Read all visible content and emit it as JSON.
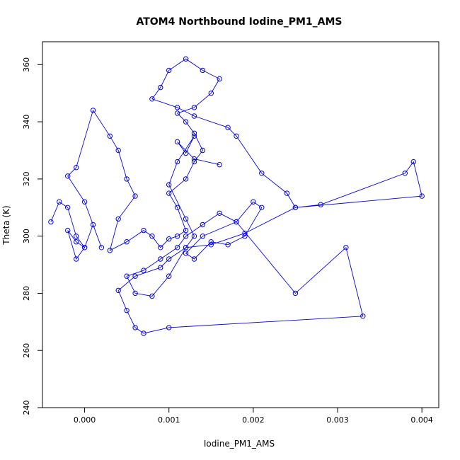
{
  "chart_data": {
    "type": "line",
    "title": "ATOM4 Northbound Iodine_PM1_AMS",
    "xlabel": "Iodine_PM1_AMS",
    "ylabel": "Theta (K)",
    "xlim": [
      -0.0005,
      0.0042
    ],
    "ylim": [
      240,
      368
    ],
    "xticks": [
      0.0,
      0.001,
      0.002,
      0.003,
      0.004
    ],
    "xtick_labels": [
      "0.000",
      "0.001",
      "0.002",
      "0.003",
      "0.004"
    ],
    "yticks": [
      240,
      260,
      280,
      300,
      320,
      340,
      360
    ],
    "ytick_labels": [
      "240",
      "260",
      "280",
      "300",
      "320",
      "340",
      "360"
    ],
    "grid": false,
    "legend": "none",
    "marker": "open-circle",
    "color": "#0000ff",
    "series": [
      {
        "x": [
          -0.0004,
          -0.0003,
          -0.0002,
          -0.0001,
          0.0,
          -0.0001,
          -0.0002,
          -0.0001,
          0.0,
          0.0001,
          0.0002,
          0.0,
          -0.0002,
          -0.0001,
          0.0001,
          0.0003,
          0.0004,
          0.0005,
          0.0006,
          0.0004,
          0.0003,
          0.0005,
          0.0007,
          0.0008,
          0.0009,
          0.001,
          0.0011,
          0.0012,
          0.0011,
          0.001,
          0.0012,
          0.0013,
          0.0014,
          0.0013,
          0.0012,
          0.0011,
          0.0013,
          0.0015,
          0.0016,
          0.0014,
          0.0012,
          0.001,
          0.0009,
          0.0008,
          0.0011,
          0.0013,
          0.0017,
          0.0018,
          0.0021,
          0.0024,
          0.0025,
          0.0028,
          0.0038,
          0.0039,
          0.004,
          0.0025,
          0.0019,
          0.0015,
          0.0012,
          0.001,
          0.0008,
          0.0006,
          0.0005,
          0.0007,
          0.0009,
          0.0011,
          0.0012,
          0.0014,
          0.0016,
          0.0018,
          0.002,
          0.0021,
          0.0019,
          0.0017,
          0.0015,
          0.0013,
          0.0012,
          0.0014,
          0.0018,
          0.0025,
          0.0031,
          0.0033,
          0.001,
          0.0007,
          0.0006,
          0.0005,
          0.0004,
          0.0006,
          0.0009,
          0.001,
          0.0012,
          0.0013,
          0.0012,
          0.001,
          0.0011,
          0.0013,
          0.0012,
          0.0011,
          0.0013,
          0.0016
        ],
        "y": [
          305,
          312,
          310,
          300,
          296,
          298,
          302,
          292,
          296,
          304,
          296,
          312,
          321,
          324,
          344,
          335,
          330,
          320,
          314,
          306,
          295,
          298,
          302,
          300,
          296,
          299,
          300,
          302,
          310,
          315,
          320,
          326,
          330,
          336,
          340,
          343,
          345,
          350,
          355,
          358,
          362,
          358,
          352,
          348,
          345,
          342,
          338,
          335,
          322,
          315,
          310,
          311,
          322,
          326,
          314,
          310,
          301,
          297,
          296,
          286,
          279,
          280,
          286,
          288,
          292,
          296,
          300,
          304,
          308,
          305,
          312,
          310,
          300,
          297,
          298,
          292,
          294,
          300,
          305,
          280,
          296,
          272,
          268,
          266,
          268,
          274,
          281,
          286,
          289,
          292,
          296,
          300,
          306,
          318,
          326,
          335,
          329,
          333,
          327,
          325
        ]
      }
    ]
  }
}
